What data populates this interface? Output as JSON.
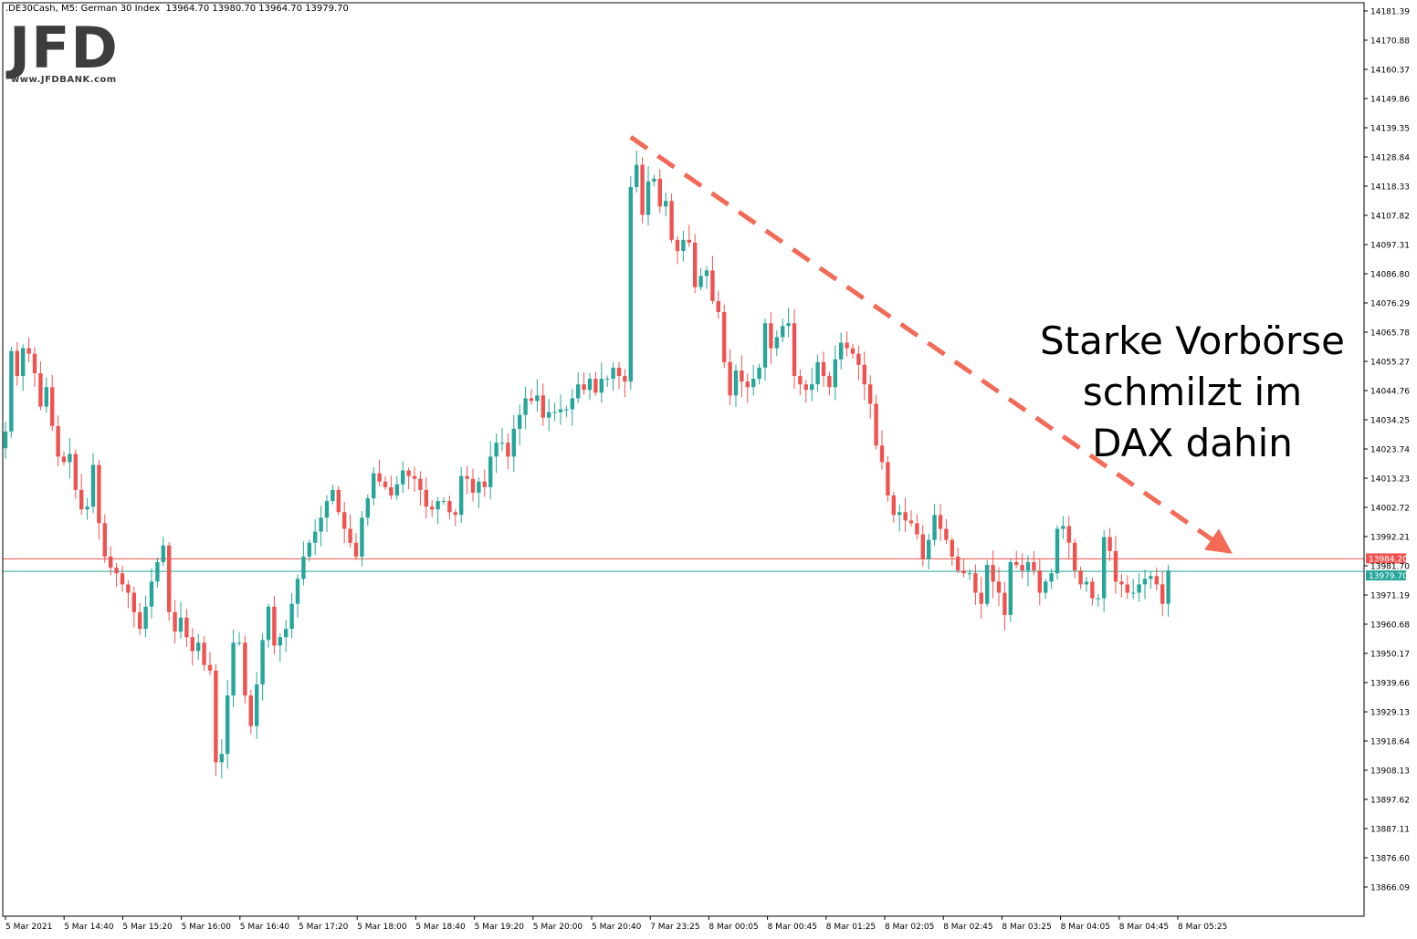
{
  "header": {
    "symbol": ".DE30Cash, M5:  German 30 Index",
    "ohlc": "13964.70 13980.70 13964.70 13979.70"
  },
  "logo": {
    "brand": "JFD",
    "url": "www.JFDBANK.com"
  },
  "annotation": {
    "lines": [
      "Starke Vorbörse",
      "schmilzt im",
      "DAX dahin"
    ]
  },
  "colors": {
    "bull": "#26a69a",
    "bear": "#ef5350",
    "trendline": "#f36a57",
    "bid_line": "#ef5350",
    "ask_line": "#26a69a"
  },
  "chart_data": {
    "type": "candlestick",
    "instrument": "German 30 Index",
    "timeframe": "M5",
    "ylim": [
      13856,
      14186
    ],
    "y_ticks": [
      "14181.39",
      "14170.88",
      "14160.37",
      "14149.86",
      "14139.35",
      "14128.84",
      "14118.33",
      "14107.82",
      "14097.31",
      "14086.80",
      "14076.29",
      "14065.78",
      "14055.27",
      "14044.76",
      "14034.25",
      "14023.74",
      "14013.23",
      "14002.72",
      "13992.21",
      "13981.70",
      "13971.19",
      "13960.68",
      "13950.17",
      "13939.66",
      "13929.13",
      "13918.64",
      "13908.13",
      "13897.62",
      "13887.11",
      "13876.60",
      "13866.09"
    ],
    "x_ticks": [
      "5 Mar 2021",
      "5 Mar 14:40",
      "5 Mar 15:20",
      "5 Mar 16:00",
      "5 Mar 16:40",
      "5 Mar 17:20",
      "5 Mar 18:00",
      "5 Mar 18:40",
      "5 Mar 19:20",
      "5 Mar 20:00",
      "5 Mar 20:40",
      "7 Mar 23:25",
      "8 Mar 00:05",
      "8 Mar 00:45",
      "8 Mar 01:25",
      "8 Mar 02:05",
      "8 Mar 02:45",
      "8 Mar 03:25",
      "8 Mar 04:05",
      "8 Mar 04:45",
      "8 Mar 05:25"
    ],
    "price_lines": [
      {
        "label": "13984.20",
        "value": 13984.2,
        "color": "#ef5350"
      },
      {
        "label": "13979.70",
        "value": 13979.7,
        "color": "#26a69a"
      }
    ],
    "trendline": {
      "from": {
        "bar": 107,
        "price": 14136
      },
      "to": {
        "bar": 210,
        "price": 13986
      }
    },
    "close_sequence": [
      14030,
      14059,
      14050,
      14060,
      14058,
      14051,
      14039,
      14046,
      14032,
      14021,
      14019,
      14022,
      14009,
      14002,
      14003,
      14018,
      13997,
      13985,
      13981,
      13979,
      13975,
      13972,
      13965,
      13959,
      13967,
      13976,
      13983,
      13989,
      13965,
      13958,
      13963,
      13956,
      13951,
      13954,
      13946,
      13944,
      13911,
      13914,
      13935,
      13954,
      13954,
      13935,
      13924,
      13939,
      13955,
      13967,
      13953,
      13956,
      13959,
      13968,
      13977,
      13985,
      13990,
      13994,
      13999,
      14005,
      14009,
      14001,
      13995,
      13990,
      13985,
      13999,
      14006,
      14015,
      14012,
      14010,
      14007,
      14011,
      14016,
      14014,
      14013,
      14009,
      14003,
      14002,
      14005,
      14005,
      14001,
      14000,
      14014,
      14013,
      14008,
      14012,
      14010,
      14021,
      14026,
      14026,
      14021,
      14031,
      14036,
      14042,
      14041,
      14043,
      14035,
      14037,
      14037,
      14038,
      14038,
      14042,
      14047,
      14045,
      14049,
      14044,
      14049,
      14049,
      14053,
      14050,
      14048,
      14118,
      14126,
      14108,
      14120,
      14121,
      14111,
      14113,
      14099,
      14095,
      14099,
      14098,
      14082,
      14086,
      14088,
      14077,
      14073,
      14055,
      14043,
      14052,
      14048,
      14046,
      14049,
      14053,
      14069,
      14060,
      14064,
      14068,
      14069,
      14050,
      14047,
      14045,
      14047,
      14055,
      14050,
      14046,
      14056,
      14062,
      14060,
      14058,
      14054,
      14047,
      14040,
      14025,
      14019,
      14007,
      14000,
      14001,
      13998,
      13997,
      13993,
      13984,
      13991,
      14000,
      13995,
      13991,
      13985,
      13980,
      13979,
      13979,
      13972,
      13968,
      13982,
      13976,
      13972,
      13964,
      13983,
      13982,
      13980,
      13983,
      13980,
      13972,
      13976,
      13979,
      13995,
      13996,
      13990,
      13980,
      13975,
      13976,
      13970,
      13970,
      13992,
      13987,
      13976,
      13975,
      13972,
      13972,
      13975,
      13977,
      13978,
      13975,
      13968,
      13980
    ]
  }
}
